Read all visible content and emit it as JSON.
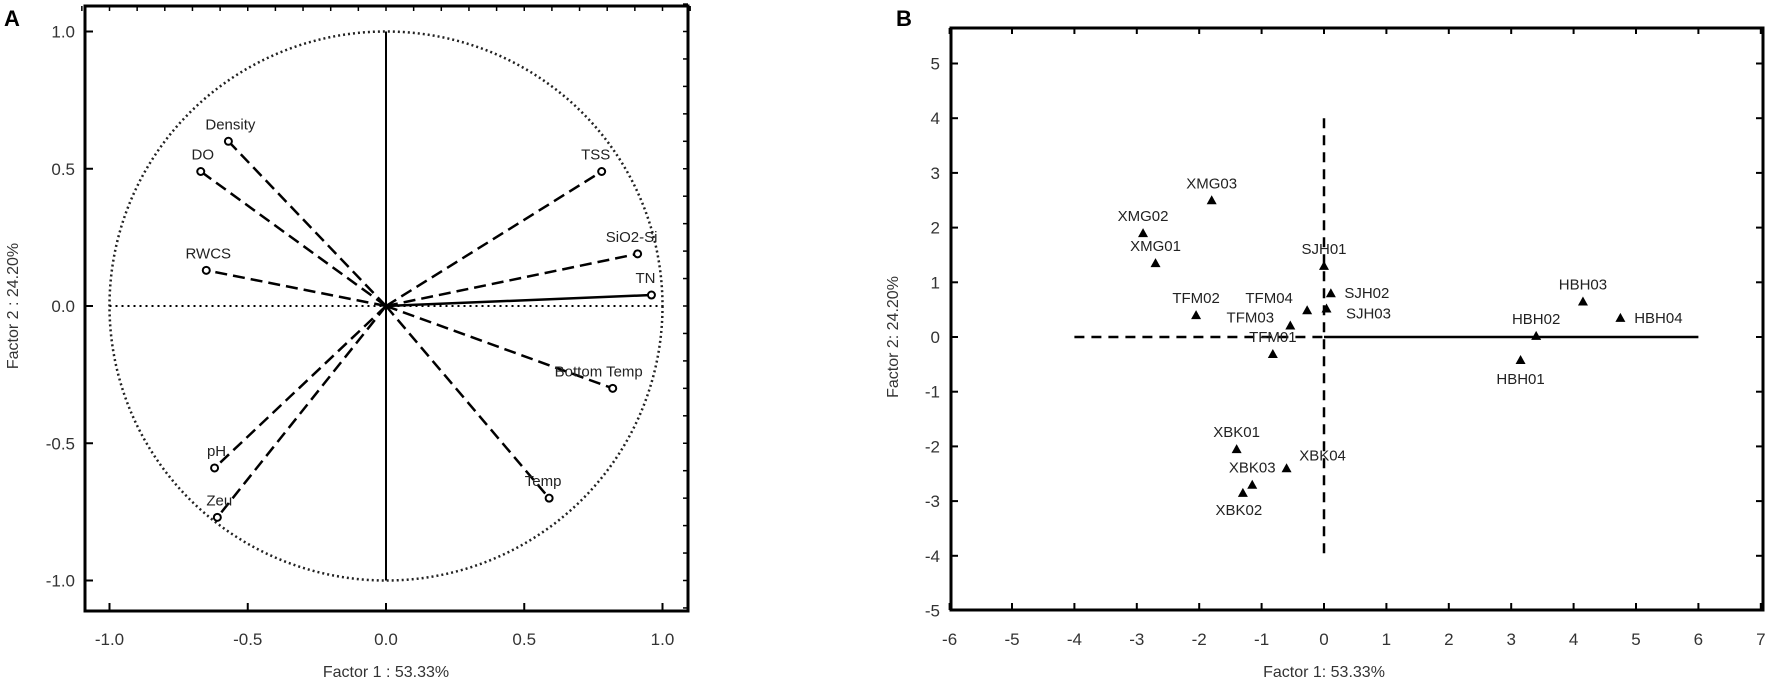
{
  "chart_data": [
    {
      "panel": "A",
      "type": "scatter",
      "xlabel": "Factor 1 : 53.33%",
      "ylabel": "Factor 2 : 24.20%",
      "xlim": [
        -1.1,
        1.1
      ],
      "ylim": [
        -1.1,
        1.1
      ],
      "xticks": [
        "-1.0",
        "-0.5",
        "0.0",
        "0.5",
        "1.0"
      ],
      "yticks": [
        "1.0",
        "0.5",
        "0.0",
        "-0.5",
        "-1.0"
      ],
      "unit_circle": true,
      "points": [
        {
          "label": "Density",
          "x": -0.57,
          "y": 0.6
        },
        {
          "label": "DO",
          "x": -0.67,
          "y": 0.49
        },
        {
          "label": "RWCS",
          "x": -0.65,
          "y": 0.13
        },
        {
          "label": "TSS",
          "x": 0.78,
          "y": 0.49
        },
        {
          "label": "SiO2-Si",
          "x": 0.91,
          "y": 0.19
        },
        {
          "label": "TN",
          "x": 0.96,
          "y": 0.04
        },
        {
          "label": "Bottom Temp",
          "x": 0.82,
          "y": -0.3
        },
        {
          "label": "Temp",
          "x": 0.59,
          "y": -0.7
        },
        {
          "label": "pH",
          "x": -0.62,
          "y": -0.59
        },
        {
          "label": "Zeu",
          "x": -0.61,
          "y": -0.77
        }
      ]
    },
    {
      "panel": "B",
      "type": "scatter",
      "xlabel": "Factor 1: 53.33%",
      "ylabel": "Factor 2: 24.20%",
      "xlim": [
        -6,
        7
      ],
      "ylim": [
        -5,
        5
      ],
      "xticks": [
        "-6",
        "-5",
        "-4",
        "-3",
        "-2",
        "-1",
        "0",
        "1",
        "2",
        "3",
        "4",
        "5",
        "6",
        "7"
      ],
      "yticks": [
        "5",
        "4",
        "3",
        "2",
        "1",
        "0",
        "-1",
        "-2",
        "-3",
        "-4",
        "-5"
      ],
      "points": [
        {
          "label": "XMG03",
          "x": -1.8,
          "y": 2.5
        },
        {
          "label": "XMG02",
          "x": -2.9,
          "y": 1.9
        },
        {
          "label": "XMG01",
          "x": -2.7,
          "y": 1.35
        },
        {
          "label": "TFM02",
          "x": -2.05,
          "y": 0.4
        },
        {
          "label": "SJH01",
          "x": 0.0,
          "y": 1.3
        },
        {
          "label": "SJH02",
          "x": 0.11,
          "y": 0.8
        },
        {
          "label": "SJH03",
          "x": 0.04,
          "y": 0.52
        },
        {
          "label": "TFM04",
          "x": -0.27,
          "y": 0.49
        },
        {
          "label": "TFM03",
          "x": -0.54,
          "y": 0.21
        },
        {
          "label": "TFM01",
          "x": -0.82,
          "y": -0.31
        },
        {
          "label": "HBH03",
          "x": 4.15,
          "y": 0.65
        },
        {
          "label": "HBH04",
          "x": 4.75,
          "y": 0.35
        },
        {
          "label": "HBH02",
          "x": 3.4,
          "y": 0.02
        },
        {
          "label": "HBH01",
          "x": 3.15,
          "y": -0.42
        },
        {
          "label": "XBK01",
          "x": -1.4,
          "y": -2.05
        },
        {
          "label": "XBK04",
          "x": -0.6,
          "y": -2.4
        },
        {
          "label": "XBK03",
          "x": -1.15,
          "y": -2.7
        },
        {
          "label": "XBK02",
          "x": -1.3,
          "y": -2.85
        }
      ]
    }
  ]
}
